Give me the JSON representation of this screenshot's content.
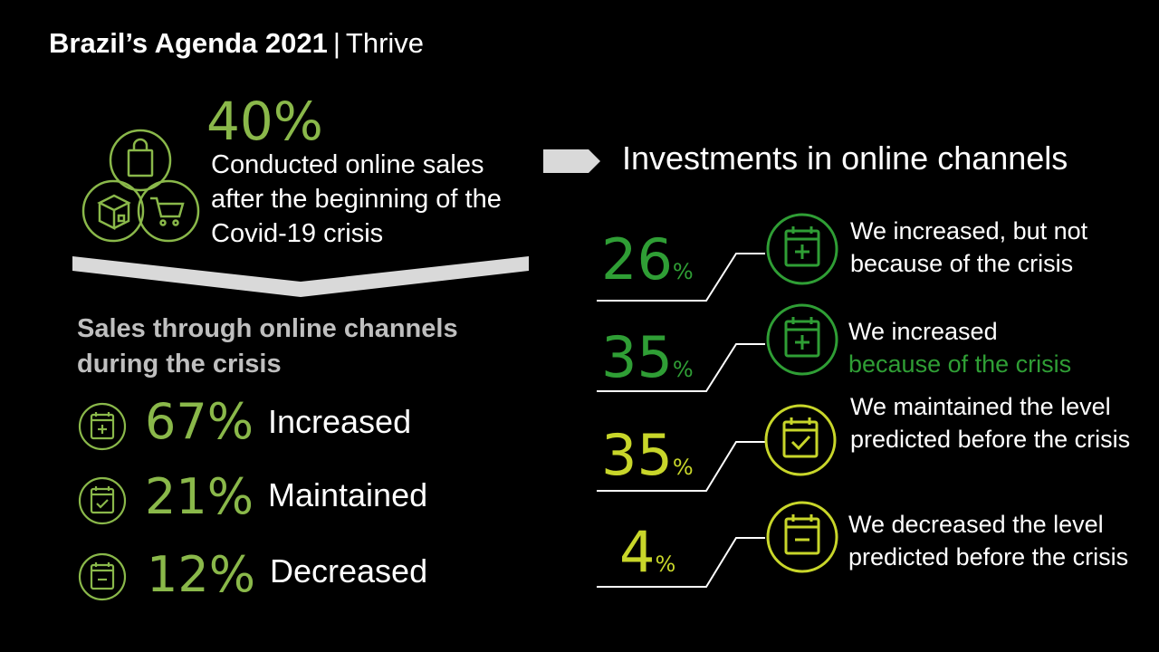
{
  "header": {
    "title_bold": "Brazil’s Agenda 2021",
    "title_sep": "|",
    "title_sub": "Thrive"
  },
  "online_sales": {
    "percent": "40%",
    "description": "Conducted online sales after the beginning of the Covid-19 crisis",
    "icons": [
      "shopping-bag-icon",
      "package-box-icon",
      "shopping-cart-icon"
    ]
  },
  "sales_channels": {
    "heading": "Sales through online channels during the crisis",
    "items": [
      {
        "percent": "67%",
        "label": "Increased",
        "icon": "calendar-plus-icon"
      },
      {
        "percent": "21%",
        "label": "Maintained",
        "icon": "calendar-check-icon"
      },
      {
        "percent": "12%",
        "label": "Decreased",
        "icon": "calendar-minus-icon"
      }
    ]
  },
  "investments": {
    "heading": "Investments in online channels",
    "items": [
      {
        "value": "26",
        "unit": "%",
        "label": "We increased, but not because of the crisis",
        "label_highlight": "",
        "icon": "calendar-plus-icon"
      },
      {
        "value": "35",
        "unit": "%",
        "label": "We increased",
        "label_highlight": "because of the crisis",
        "icon": "calendar-plus-icon"
      },
      {
        "value": "35",
        "unit": "%",
        "label": "We maintained the level predicted before the crisis",
        "label_highlight": "",
        "icon": "calendar-check-icon"
      },
      {
        "value": "4",
        "unit": "%",
        "label": "We decreased the level predicted before the crisis",
        "label_highlight": "",
        "icon": "calendar-minus-icon"
      }
    ]
  },
  "colors": {
    "background": "#000000",
    "green_light": "#8ab84a",
    "green_dark": "#2f9e35",
    "lime": "#c8d62a",
    "gray_heading": "#bfbfbf"
  }
}
